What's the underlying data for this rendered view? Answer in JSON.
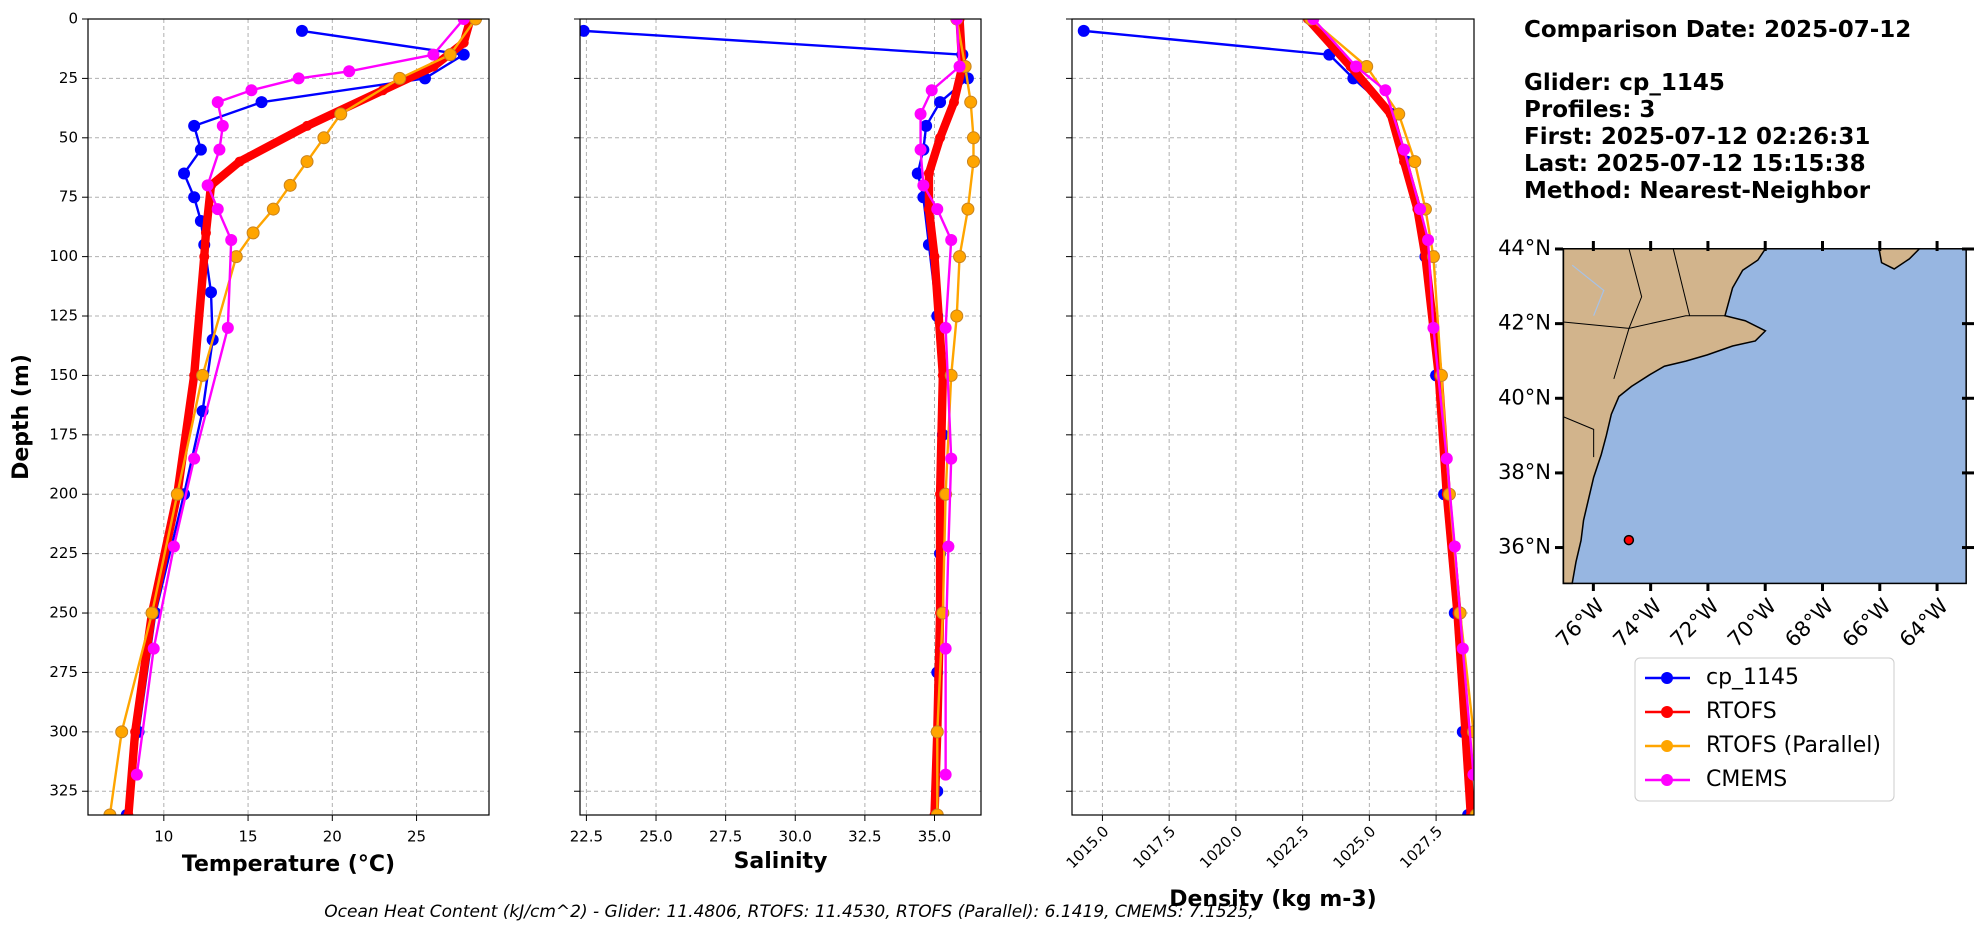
{
  "chart_data": [
    {
      "type": "line",
      "xlabel": "Temperature (°C)",
      "ylabel": "Depth (m)",
      "xlim": [
        5.5,
        29.3
      ],
      "xticks": [
        10,
        15,
        20,
        25
      ],
      "ylim": [
        0,
        335
      ],
      "yticks": [
        0,
        25,
        50,
        75,
        100,
        125,
        150,
        175,
        200,
        225,
        250,
        275,
        300,
        325
      ],
      "y_inverted": true,
      "grid": true,
      "series": [
        {
          "name": "cp_1145",
          "color": "#0000ff",
          "linewidth": 2,
          "depth": [
            5,
            15,
            25,
            35,
            45,
            55,
            65,
            75,
            85,
            95,
            115,
            135,
            165,
            200,
            250,
            300,
            335
          ],
          "values": [
            18.2,
            27.8,
            25.5,
            15.8,
            11.8,
            12.2,
            11.2,
            11.8,
            12.2,
            12.4,
            12.8,
            12.9,
            12.3,
            11.2,
            9.5,
            8.5,
            7.8
          ]
        },
        {
          "name": "RTOFS",
          "color": "#ff0000",
          "linewidth": 7,
          "depth": [
            0,
            10,
            20,
            30,
            45,
            60,
            70,
            90,
            100,
            150,
            200,
            250,
            300,
            335
          ],
          "values": [
            28.2,
            27.8,
            26,
            23,
            18.5,
            14.5,
            12.8,
            12.5,
            12.4,
            11.8,
            10.8,
            9.3,
            8.3,
            7.9
          ]
        },
        {
          "name": "RTOFS (Parallel)",
          "color": "#ffa500",
          "linewidth": 2,
          "depth": [
            0,
            15,
            25,
            40,
            50,
            60,
            70,
            80,
            90,
            100,
            150,
            200,
            250,
            300,
            335
          ],
          "values": [
            28.5,
            27,
            24,
            20.5,
            19.5,
            18.5,
            17.5,
            16.5,
            15.3,
            14.3,
            12.3,
            10.8,
            9.3,
            7.5,
            6.8
          ]
        },
        {
          "name": "CMEMS",
          "color": "#ff00ff",
          "linewidth": 2,
          "depth": [
            0,
            15,
            22,
            25,
            30,
            35,
            45,
            55,
            70,
            80,
            93,
            130,
            185,
            222,
            265,
            318
          ],
          "values": [
            27.8,
            26,
            21,
            18,
            15.2,
            13.2,
            13.5,
            13.3,
            12.6,
            13.2,
            14,
            13.8,
            11.8,
            10.6,
            9.4,
            8.4
          ]
        }
      ]
    },
    {
      "type": "line",
      "xlabel": "Salinity",
      "xlim": [
        22.27,
        36.67
      ],
      "xticks": [
        {
          "value": 22.5,
          "label": "22.5"
        },
        {
          "value": 25,
          "label": "25.0"
        },
        {
          "value": 27.5,
          "label": "27.5"
        },
        {
          "value": 30,
          "label": "30.0"
        },
        {
          "value": 32.5,
          "label": "32.5"
        },
        {
          "value": 35,
          "label": "35.0"
        }
      ],
      "ylim": [
        0,
        335
      ],
      "yticks": [
        0,
        25,
        50,
        75,
        100,
        125,
        150,
        175,
        200,
        225,
        250,
        275,
        300,
        325
      ],
      "y_inverted": true,
      "grid": true,
      "series": [
        {
          "name": "cp_1145",
          "color": "#0000ff",
          "linewidth": 2,
          "depth": [
            5,
            15,
            25,
            35,
            45,
            55,
            65,
            75,
            95,
            125,
            175,
            225,
            275,
            325
          ],
          "values": [
            22.4,
            36.0,
            36.2,
            35.2,
            34.7,
            34.6,
            34.4,
            34.6,
            34.8,
            35.1,
            35.3,
            35.2,
            35.1,
            35.1
          ]
        },
        {
          "name": "RTOFS",
          "color": "#ff0000",
          "linewidth": 7,
          "depth": [
            0,
            20,
            35,
            50,
            65,
            80,
            100,
            150,
            200,
            250,
            300,
            335
          ],
          "values": [
            35.9,
            36.0,
            35.7,
            35.2,
            34.8,
            34.8,
            35.0,
            35.3,
            35.2,
            35.2,
            35.1,
            35.0
          ]
        },
        {
          "name": "RTOFS (Parallel)",
          "color": "#ffa500",
          "linewidth": 2,
          "depth": [
            0,
            20,
            35,
            50,
            60,
            80,
            100,
            125,
            150,
            200,
            250,
            300,
            335
          ],
          "values": [
            35.8,
            36.1,
            36.3,
            36.4,
            36.4,
            36.2,
            35.9,
            35.8,
            35.6,
            35.4,
            35.3,
            35.1,
            35.1
          ]
        },
        {
          "name": "CMEMS",
          "color": "#ff00ff",
          "linewidth": 2,
          "depth": [
            0,
            20,
            30,
            40,
            55,
            70,
            80,
            93,
            130,
            185,
            222,
            265,
            318
          ],
          "values": [
            35.8,
            35.9,
            34.9,
            34.5,
            34.5,
            34.6,
            35.1,
            35.6,
            35.4,
            35.6,
            35.5,
            35.4,
            35.4
          ]
        }
      ]
    },
    {
      "type": "line",
      "xlabel": "Density (kg m-3)",
      "xlim": [
        1013.86,
        1028.92
      ],
      "xticks": [
        {
          "value": 1015,
          "label": "1015.0"
        },
        {
          "value": 1017.5,
          "label": "1017.5"
        },
        {
          "value": 1020,
          "label": "1020.0"
        },
        {
          "value": 1022.5,
          "label": "1022.5"
        },
        {
          "value": 1025,
          "label": "1025.0"
        },
        {
          "value": 1027.5,
          "label": "1027.5"
        }
      ],
      "ylim": [
        0,
        335
      ],
      "yticks": [
        0,
        25,
        50,
        75,
        100,
        125,
        150,
        175,
        200,
        225,
        250,
        275,
        300,
        325
      ],
      "y_inverted": true,
      "grid": true,
      "series": [
        {
          "name": "cp_1145",
          "color": "#0000ff",
          "linewidth": 2,
          "depth": [
            5,
            15,
            25,
            40,
            60,
            80,
            100,
            150,
            200,
            250,
            300,
            335
          ],
          "values": [
            1014.3,
            1023.5,
            1024.4,
            1025.9,
            1026.4,
            1026.9,
            1027.1,
            1027.5,
            1027.8,
            1028.2,
            1028.5,
            1028.7
          ]
        },
        {
          "name": "RTOFS",
          "color": "#ff0000",
          "linewidth": 7,
          "depth": [
            0,
            20,
            40,
            60,
            80,
            100,
            150,
            200,
            250,
            300,
            335
          ],
          "values": [
            1022.7,
            1024.3,
            1025.8,
            1026.3,
            1026.8,
            1027.1,
            1027.6,
            1027.9,
            1028.3,
            1028.6,
            1028.8
          ]
        },
        {
          "name": "RTOFS (Parallel)",
          "color": "#ffa500",
          "linewidth": 2,
          "depth": [
            0,
            20,
            40,
            60,
            80,
            100,
            150,
            200,
            250,
            300,
            335
          ],
          "values": [
            1022.8,
            1024.9,
            1026.1,
            1026.7,
            1027.1,
            1027.4,
            1027.7,
            1028.0,
            1028.4,
            1028.9,
            1029.0
          ]
        },
        {
          "name": "CMEMS",
          "color": "#ff00ff",
          "linewidth": 2,
          "depth": [
            0,
            20,
            30,
            55,
            80,
            93,
            130,
            185,
            222,
            265,
            318
          ],
          "values": [
            1022.9,
            1024.5,
            1025.6,
            1026.3,
            1026.9,
            1027.2,
            1027.4,
            1027.9,
            1028.2,
            1028.5,
            1028.9
          ]
        }
      ]
    }
  ],
  "info": {
    "title": "Comparison Date: 2025-07-12",
    "lines": [
      "Glider: cp_1145",
      "Profiles: 3",
      "First: 2025-07-12 02:26:31",
      "Last: 2025-07-12 15:15:38",
      "Method: Nearest-Neighbor"
    ]
  },
  "map": {
    "lonlim": [
      -77.06,
      -62.99
    ],
    "latlim": [
      35.05,
      44
    ],
    "lat_ticks": [
      {
        "value": 44,
        "label": "44°N"
      },
      {
        "value": 42,
        "label": "42°N"
      },
      {
        "value": 40,
        "label": "40°N"
      },
      {
        "value": 38,
        "label": "38°N"
      },
      {
        "value": 36,
        "label": "36°N"
      }
    ],
    "lon_ticks": [
      {
        "value": -76,
        "label": "76°W"
      },
      {
        "value": -74,
        "label": "74°W"
      },
      {
        "value": -72,
        "label": "72°W"
      },
      {
        "value": -70,
        "label": "70°W"
      },
      {
        "value": -68,
        "label": "68°W"
      },
      {
        "value": -66,
        "label": "66°W"
      },
      {
        "value": -64,
        "label": "64°W"
      }
    ],
    "marker": {
      "lon": -74.76,
      "lat": 36.2,
      "color": "#ff0000"
    }
  },
  "footer": "Ocean Heat Content (kJ/cm^2) - Glider: 11.4806,  RTOFS: 11.4530,  RTOFS (Parallel): 6.1419,  CMEMS: 7.1525,"
}
